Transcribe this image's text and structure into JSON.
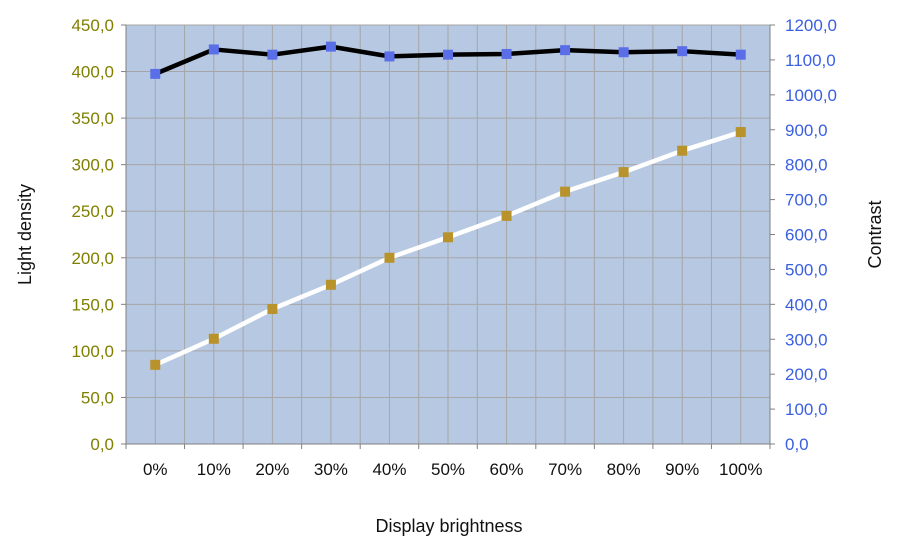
{
  "chart_data": {
    "type": "line",
    "xlabel": "Display brightness",
    "ylabel_left": "Light density",
    "ylabel_right": "Contrast",
    "categories": [
      "0%",
      "10%",
      "20%",
      "30%",
      "40%",
      "50%",
      "60%",
      "70%",
      "80%",
      "90%",
      "100%"
    ],
    "y_left": {
      "min": 0,
      "max": 450,
      "step": 50,
      "ticks": [
        "0,0",
        "50,0",
        "100,0",
        "150,0",
        "200,0",
        "250,0",
        "300,0",
        "350,0",
        "400,0",
        "450,0"
      ]
    },
    "y_right": {
      "min": 0,
      "max": 1200,
      "step": 100,
      "ticks": [
        "0,0",
        "100,0",
        "200,0",
        "300,0",
        "400,0",
        "500,0",
        "600,0",
        "700,0",
        "800,0",
        "900,0",
        "1000,0",
        "1100,0",
        "1200,0"
      ]
    },
    "grid": true,
    "series": [
      {
        "axis": "left",
        "line_color": "#ffffff",
        "marker_color": "#b8922a",
        "values": [
          85,
          113,
          145,
          171,
          200,
          222,
          245,
          271,
          292,
          315,
          335
        ]
      },
      {
        "axis": "right",
        "line_color": "#000000",
        "marker_color": "#5a6ee8",
        "values": [
          1060,
          1130,
          1115,
          1138,
          1110,
          1115,
          1117,
          1128,
          1122,
          1125,
          1115
        ]
      }
    ],
    "colors": {
      "plot_background": "#b7c9e2",
      "grid": "#a6a6a6",
      "left_axis_text": "#7f7f00",
      "right_axis_text": "#3a5fe0"
    }
  }
}
